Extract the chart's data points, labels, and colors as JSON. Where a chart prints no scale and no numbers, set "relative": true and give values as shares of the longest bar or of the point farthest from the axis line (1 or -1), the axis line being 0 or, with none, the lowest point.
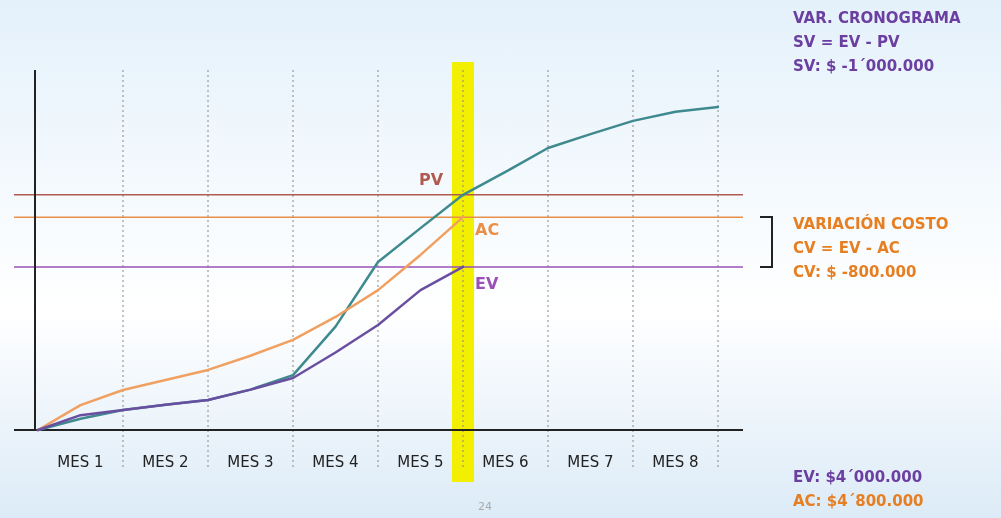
{
  "chart_data": {
    "type": "line",
    "relative": true,
    "categories": [
      null,
      "MES 1",
      null,
      "MES 2",
      null,
      "MES 3",
      null,
      "MES 4",
      null,
      "MES 5",
      null,
      "MES 6",
      null,
      "MES 7",
      null,
      "MES 8",
      null
    ],
    "grid": "x",
    "marker": "none",
    "line_style": "solid",
    "series": [
      {
        "color": "#3e8a8f",
        "values": [
          0,
          0.035,
          0.062,
          0.078,
          0.093,
          0.125,
          0.17,
          0.32,
          0.52,
          0.625,
          0.728,
          0.799,
          0.873,
          0.916,
          0.957,
          0.985,
          1
        ]
      },
      {
        "color": "#f0a060",
        "values": [
          0,
          0.077,
          0.124,
          0.155,
          0.186,
          0.23,
          0.279,
          0.35,
          0.433,
          0.542,
          0.659,
          null,
          null,
          null,
          null,
          null,
          null
        ]
      },
      {
        "color": "#6a4fa0",
        "values": [
          0,
          0.046,
          0.062,
          0.078,
          0.093,
          0.125,
          0.161,
          0.24,
          0.325,
          0.433,
          0.505,
          null,
          null,
          null,
          null,
          null,
          null
        ]
      }
    ],
    "ref_lines": [
      {
        "axis": "y",
        "value": 0.728,
        "label": "PV",
        "color": "#b05a50"
      },
      {
        "axis": "y",
        "value": 0.659,
        "label": "AC",
        "color": "#e8904a"
      },
      {
        "axis": "y",
        "value": 0.505,
        "label": "EV",
        "color": "#9a50b8"
      }
    ],
    "annotations": [
      "VAR. CRONOGRAMA",
      "SV = EV - PV",
      "SV: $ -1´000.000",
      "VARIACIÓN COSTO",
      "CV = EV - AC",
      "CV: $ -800.000",
      "EV: $4´000.000",
      "AC: $4´800.000",
      "24"
    ]
  }
}
